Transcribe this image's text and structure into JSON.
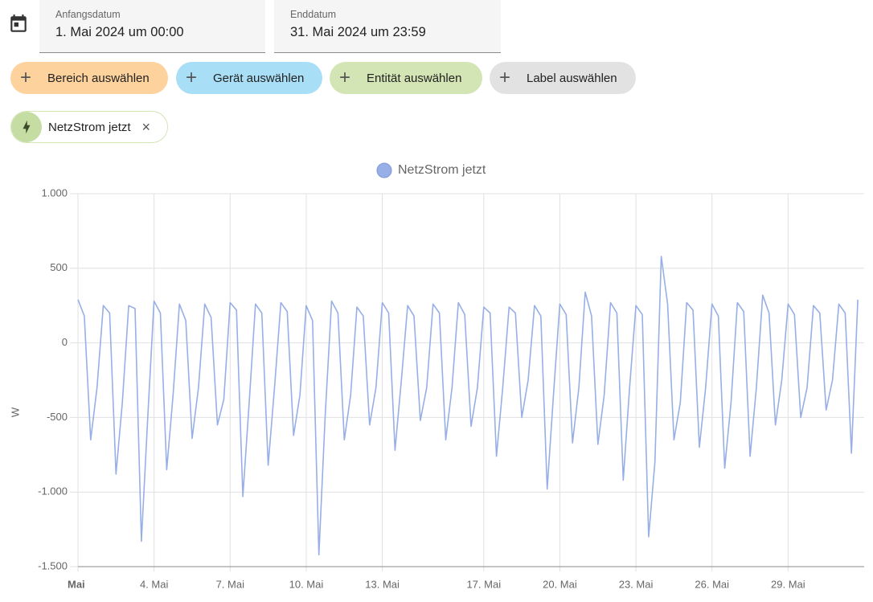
{
  "date_range": {
    "start_label": "Anfangsdatum",
    "start_value": "1. Mai 2024 um 00:00",
    "end_label": "Enddatum",
    "end_value": "31. Mai 2024 um 23:59"
  },
  "pickers": [
    "Bereich auswählen",
    "Gerät auswählen",
    "Entität auswählen",
    "Label auswählen"
  ],
  "selected": [
    "NetzStrom jetzt"
  ],
  "chart_data": {
    "type": "line",
    "ylabel": "W",
    "grid": true,
    "xlim": [
      "2024-05-01T00:00",
      "2024-05-31T23:59"
    ],
    "xticks": [
      {
        "value": "2024-05-01T00:00",
        "label": "Mai"
      },
      {
        "value": "2024-05-04T00:00",
        "label": "4. Mai"
      },
      {
        "value": "2024-05-07T00:00",
        "label": "7. Mai"
      },
      {
        "value": "2024-05-10T00:00",
        "label": "10. Mai"
      },
      {
        "value": "2024-05-13T00:00",
        "label": "13. Mai"
      },
      {
        "value": "2024-05-17T00:00",
        "label": "17. Mai"
      },
      {
        "value": "2024-05-20T00:00",
        "label": "20. Mai"
      },
      {
        "value": "2024-05-23T00:00",
        "label": "23. Mai"
      },
      {
        "value": "2024-05-26T00:00",
        "label": "26. Mai"
      },
      {
        "value": "2024-05-29T00:00",
        "label": "29. Mai"
      }
    ],
    "ylim": [
      -1500,
      1000
    ],
    "yticks": [
      {
        "value": 1000,
        "label": "1.000"
      },
      500,
      0,
      -500,
      {
        "value": -1000,
        "label": "-1.000"
      },
      {
        "value": -1500,
        "label": "-1.500"
      }
    ],
    "x": [
      "2024-05-01T00:00",
      "2024-05-01T06:00",
      "2024-05-01T12:00",
      "2024-05-01T18:00",
      "2024-05-02T00:00",
      "2024-05-02T06:00",
      "2024-05-02T12:00",
      "2024-05-02T18:00",
      "2024-05-03T00:00",
      "2024-05-03T06:00",
      "2024-05-03T12:00",
      "2024-05-03T18:00",
      "2024-05-04T00:00",
      "2024-05-04T06:00",
      "2024-05-04T12:00",
      "2024-05-04T18:00",
      "2024-05-05T00:00",
      "2024-05-05T06:00",
      "2024-05-05T12:00",
      "2024-05-05T18:00",
      "2024-05-06T00:00",
      "2024-05-06T06:00",
      "2024-05-06T12:00",
      "2024-05-06T18:00",
      "2024-05-07T00:00",
      "2024-05-07T06:00",
      "2024-05-07T12:00",
      "2024-05-07T18:00",
      "2024-05-08T00:00",
      "2024-05-08T06:00",
      "2024-05-08T12:00",
      "2024-05-08T18:00",
      "2024-05-09T00:00",
      "2024-05-09T06:00",
      "2024-05-09T12:00",
      "2024-05-09T18:00",
      "2024-05-10T00:00",
      "2024-05-10T06:00",
      "2024-05-10T12:00",
      "2024-05-10T18:00",
      "2024-05-11T00:00",
      "2024-05-11T06:00",
      "2024-05-11T12:00",
      "2024-05-11T18:00",
      "2024-05-12T00:00",
      "2024-05-12T06:00",
      "2024-05-12T12:00",
      "2024-05-12T18:00",
      "2024-05-13T00:00",
      "2024-05-13T06:00",
      "2024-05-13T12:00",
      "2024-05-13T18:00",
      "2024-05-14T00:00",
      "2024-05-14T06:00",
      "2024-05-14T12:00",
      "2024-05-14T18:00",
      "2024-05-15T00:00",
      "2024-05-15T06:00",
      "2024-05-15T12:00",
      "2024-05-15T18:00",
      "2024-05-16T00:00",
      "2024-05-16T06:00",
      "2024-05-16T12:00",
      "2024-05-16T18:00",
      "2024-05-17T00:00",
      "2024-05-17T06:00",
      "2024-05-17T12:00",
      "2024-05-17T18:00",
      "2024-05-18T00:00",
      "2024-05-18T06:00",
      "2024-05-18T12:00",
      "2024-05-18T18:00",
      "2024-05-19T00:00",
      "2024-05-19T06:00",
      "2024-05-19T12:00",
      "2024-05-19T18:00",
      "2024-05-20T00:00",
      "2024-05-20T06:00",
      "2024-05-20T12:00",
      "2024-05-20T18:00",
      "2024-05-21T00:00",
      "2024-05-21T06:00",
      "2024-05-21T12:00",
      "2024-05-21T18:00",
      "2024-05-22T00:00",
      "2024-05-22T06:00",
      "2024-05-22T12:00",
      "2024-05-22T18:00",
      "2024-05-23T00:00",
      "2024-05-23T06:00",
      "2024-05-23T12:00",
      "2024-05-23T18:00",
      "2024-05-24T00:00",
      "2024-05-24T06:00",
      "2024-05-24T12:00",
      "2024-05-24T18:00",
      "2024-05-25T00:00",
      "2024-05-25T06:00",
      "2024-05-25T12:00",
      "2024-05-25T18:00",
      "2024-05-26T00:00",
      "2024-05-26T06:00",
      "2024-05-26T12:00",
      "2024-05-26T18:00",
      "2024-05-27T00:00",
      "2024-05-27T06:00",
      "2024-05-27T12:00",
      "2024-05-27T18:00",
      "2024-05-28T00:00",
      "2024-05-28T06:00",
      "2024-05-28T12:00",
      "2024-05-28T18:00",
      "2024-05-29T00:00",
      "2024-05-29T06:00",
      "2024-05-29T12:00",
      "2024-05-29T18:00",
      "2024-05-30T00:00",
      "2024-05-30T06:00",
      "2024-05-30T12:00",
      "2024-05-30T18:00",
      "2024-05-31T00:00",
      "2024-05-31T06:00",
      "2024-05-31T12:00",
      "2024-05-31T18:00"
    ],
    "series": [
      {
        "name": "NetzStrom jetzt",
        "color": "#97aee6",
        "values": [
          290,
          180,
          -650,
          -300,
          250,
          200,
          -880,
          -400,
          250,
          230,
          -1330,
          -500,
          280,
          200,
          -850,
          -350,
          260,
          150,
          -640,
          -300,
          260,
          170,
          -550,
          -380,
          270,
          220,
          -1030,
          -400,
          260,
          200,
          -820,
          -300,
          270,
          210,
          -620,
          -350,
          250,
          150,
          -1420,
          -480,
          280,
          200,
          -650,
          -350,
          240,
          180,
          -550,
          -300,
          270,
          200,
          -720,
          -250,
          250,
          180,
          -520,
          -300,
          260,
          200,
          -650,
          -300,
          270,
          190,
          -560,
          -300,
          240,
          200,
          -760,
          -300,
          240,
          200,
          -500,
          -250,
          250,
          180,
          -980,
          -350,
          260,
          190,
          -670,
          -300,
          340,
          180,
          -680,
          -350,
          270,
          200,
          -920,
          -300,
          250,
          190,
          -1300,
          -800,
          580,
          260,
          -650,
          -400,
          270,
          220,
          -700,
          -300,
          260,
          180,
          -840,
          -400,
          270,
          210,
          -760,
          -300,
          320,
          200,
          -550,
          -250,
          260,
          190,
          -500,
          -300,
          250,
          200,
          -450,
          -250,
          260,
          200,
          -740,
          290
        ]
      }
    ]
  }
}
